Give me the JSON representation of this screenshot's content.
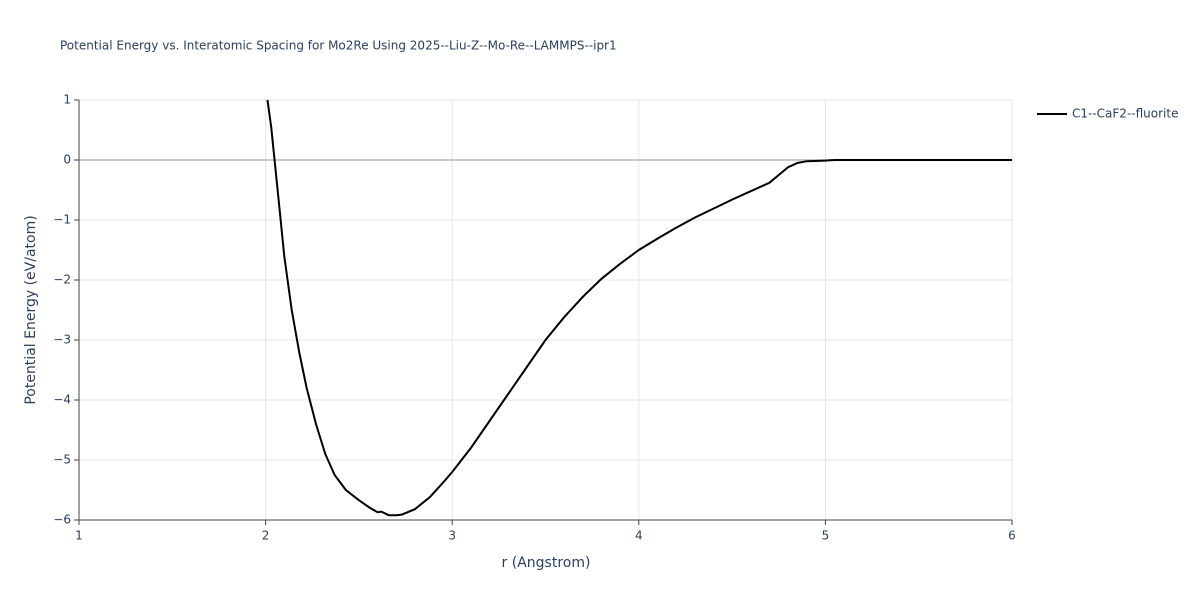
{
  "chart_data": {
    "type": "line",
    "title": "Potential Energy vs. Interatomic Spacing for Mo2Re Using 2025--Liu-Z--Mo-Re--LAMMPS--ipr1",
    "x_label": "r (Angstrom)",
    "y_label": "Potential Energy (eV/atom)",
    "x": [
      2.01,
      2.03,
      2.07,
      2.1,
      2.14,
      2.18,
      2.22,
      2.27,
      2.32,
      2.37,
      2.43,
      2.5,
      2.56,
      2.6,
      2.62,
      2.66,
      2.7,
      2.73,
      2.8,
      2.88,
      2.95,
      3.0,
      3.1,
      3.2,
      3.3,
      3.4,
      3.5,
      3.6,
      3.7,
      3.8,
      3.9,
      4.0,
      4.1,
      4.2,
      4.3,
      4.4,
      4.5,
      4.6,
      4.7,
      4.8,
      4.85,
      4.9,
      5.0,
      5.05,
      5.5,
      6.0
    ],
    "series": [
      {
        "name": "C1--CaF2--fluorite",
        "color": "#000000",
        "values": [
          1.0,
          0.55,
          -0.67,
          -1.6,
          -2.5,
          -3.2,
          -3.8,
          -4.4,
          -4.9,
          -5.25,
          -5.5,
          -5.67,
          -5.8,
          -5.87,
          -5.86,
          -5.92,
          -5.92,
          -5.91,
          -5.82,
          -5.62,
          -5.38,
          -5.2,
          -4.8,
          -4.35,
          -3.9,
          -3.45,
          -3.0,
          -2.62,
          -2.28,
          -1.98,
          -1.73,
          -1.5,
          -1.31,
          -1.13,
          -0.96,
          -0.81,
          -0.66,
          -0.52,
          -0.38,
          -0.12,
          -0.05,
          -0.02,
          -0.01,
          0,
          0,
          0
        ]
      }
    ],
    "xlim": [
      1,
      6
    ],
    "xticks": [
      1,
      2,
      3,
      4,
      5,
      6
    ],
    "ylim": [
      -6,
      1
    ],
    "yticks": [
      {
        "value": -6,
        "label": "−6"
      },
      {
        "value": -5,
        "label": "−5"
      },
      {
        "value": -4,
        "label": "−4"
      },
      {
        "value": -3,
        "label": "−3"
      },
      {
        "value": -2,
        "label": "−2"
      },
      {
        "value": -1,
        "label": "−1"
      },
      0,
      1
    ],
    "grid": true,
    "legend": "top-right"
  }
}
